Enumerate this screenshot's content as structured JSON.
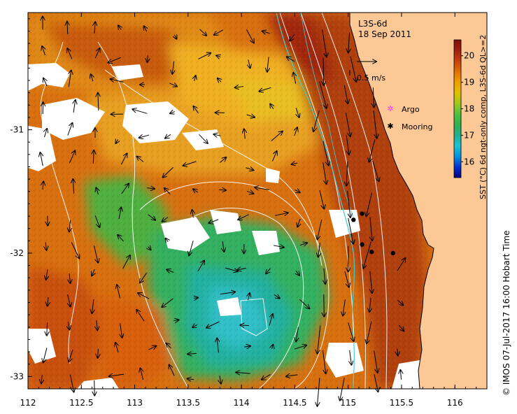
{
  "map": {
    "product": "L3S-6d",
    "date": "18 Sep 2011",
    "scale_arrow_label": "0.5 m/s",
    "legend": [
      {
        "name": "Argo",
        "color": "#ff33ff",
        "marker": "star-open"
      },
      {
        "name": "Mooring",
        "color": "#000000",
        "marker": "star"
      }
    ],
    "colorbar": {
      "title": "SST (°C) 6d ngt-only comp, L3S-6d QL>=2",
      "ticks": [
        "16",
        "17",
        "18",
        "19",
        "20"
      ],
      "min": 15.4,
      "max": 20.6,
      "colors": [
        "#000080",
        "#0030d0",
        "#0090e0",
        "#20c0d0",
        "#20b090",
        "#30b050",
        "#50c040",
        "#a0c820",
        "#e0c000",
        "#f0a000",
        "#e07000",
        "#c84010",
        "#a02010",
        "#801008"
      ]
    },
    "x_ticks": [
      "112",
      "112.5",
      "113",
      "113.5",
      "114",
      "114.5",
      "115",
      "115.5",
      "116"
    ],
    "y_ticks": [
      "-31",
      "-32",
      "-33"
    ],
    "land_color": "#fcc896",
    "credit": "© IMOS 07-Jul-2017 16:00 Hobart Time",
    "moorings": [
      {
        "lon": 115.05,
        "lat": -31.73
      },
      {
        "lon": 115.13,
        "lat": -31.68
      },
      {
        "lon": 115.13,
        "lat": -31.93
      },
      {
        "lon": 115.22,
        "lat": -31.99
      },
      {
        "lon": 115.42,
        "lat": -32.0
      }
    ],
    "extent": {
      "lon": [
        112,
        116.3
      ],
      "lat": [
        -33.1,
        -30.05
      ]
    }
  }
}
